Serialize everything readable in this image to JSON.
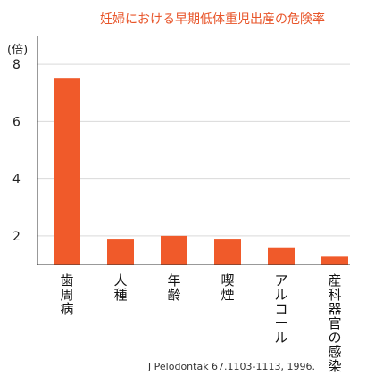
{
  "chart_data": {
    "type": "bar",
    "title": "妊婦における早期低体重児出産の危険率",
    "ylabel": "(倍)",
    "categories": [
      "歯周病",
      "人種",
      "年齢",
      "喫煙",
      "アルコール",
      "産科器官の感染"
    ],
    "values": [
      7.5,
      1.9,
      2.0,
      1.9,
      1.6,
      1.3
    ],
    "ylim": [
      1,
      9
    ],
    "yticks": [
      2,
      4,
      6,
      8
    ],
    "grid": true,
    "source": "J Pelodontak 67.1103-1113, 1996.",
    "bar_color": "#f05a2a",
    "grid_color": "#d9d9d9",
    "axis_color": "#333333"
  }
}
